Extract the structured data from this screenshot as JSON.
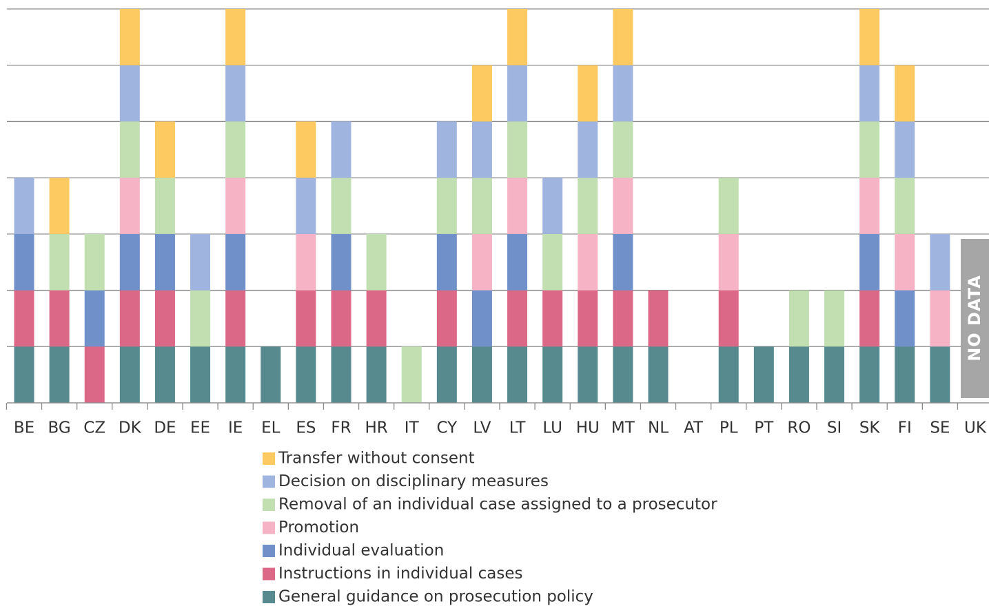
{
  "chart_data": {
    "type": "stacked_bar",
    "categories": [
      "BE",
      "BG",
      "CZ",
      "DK",
      "DE",
      "EE",
      "IE",
      "EL",
      "ES",
      "FR",
      "HR",
      "IT",
      "CY",
      "LV",
      "LT",
      "LU",
      "HU",
      "MT",
      "NL",
      "AT",
      "PL",
      "PT",
      "RO",
      "SI",
      "SK",
      "FI",
      "SE",
      "UK"
    ],
    "series": [
      {
        "name": "General guidance on prosecution policy",
        "color": "#568a8f",
        "values": [
          1,
          1,
          0,
          1,
          1,
          1,
          1,
          1,
          1,
          1,
          1,
          0,
          1,
          1,
          1,
          1,
          1,
          1,
          1,
          0,
          1,
          1,
          1,
          1,
          1,
          1,
          1,
          null
        ]
      },
      {
        "name": "Instructions in individual cases",
        "color": "#dc6888",
        "values": [
          1,
          1,
          1,
          1,
          1,
          0,
          1,
          0,
          1,
          1,
          1,
          0,
          1,
          0,
          1,
          1,
          1,
          1,
          1,
          0,
          1,
          0,
          0,
          0,
          1,
          0,
          0,
          null
        ]
      },
      {
        "name": "Individual evaluation",
        "color": "#7090c9",
        "values": [
          1,
          0,
          1,
          1,
          1,
          0,
          1,
          0,
          0,
          1,
          0,
          0,
          1,
          1,
          1,
          0,
          0,
          1,
          0,
          0,
          0,
          0,
          0,
          0,
          1,
          1,
          0,
          null
        ]
      },
      {
        "name": "Promotion",
        "color": "#f5b3c5",
        "values": [
          0,
          0,
          0,
          1,
          0,
          0,
          1,
          0,
          1,
          0,
          0,
          0,
          0,
          1,
          1,
          0,
          1,
          1,
          0,
          0,
          1,
          0,
          0,
          0,
          1,
          1,
          1,
          null
        ]
      },
      {
        "name": "Removal of an individual case assigned to a prosecutor",
        "color": "#c2dfb2",
        "values": [
          0,
          1,
          1,
          1,
          1,
          1,
          1,
          0,
          0,
          1,
          1,
          1,
          1,
          1,
          1,
          1,
          1,
          1,
          0,
          0,
          1,
          0,
          1,
          1,
          1,
          1,
          0,
          null
        ]
      },
      {
        "name": "Decision on disciplinary measures",
        "color": "#a0b4e0",
        "values": [
          1,
          0,
          0,
          1,
          0,
          1,
          1,
          0,
          1,
          1,
          0,
          0,
          1,
          1,
          1,
          1,
          1,
          1,
          0,
          0,
          0,
          0,
          0,
          0,
          1,
          1,
          1,
          null
        ]
      },
      {
        "name": "Transfer without consent",
        "color": "#fdc961",
        "values": [
          0,
          1,
          0,
          1,
          1,
          0,
          1,
          0,
          1,
          0,
          0,
          0,
          0,
          1,
          1,
          0,
          1,
          1,
          0,
          0,
          0,
          0,
          0,
          0,
          1,
          1,
          0,
          null
        ]
      }
    ],
    "ylim": [
      0,
      7
    ],
    "yticks": [
      0,
      1,
      2,
      3,
      4,
      5,
      6,
      7
    ],
    "grid": true,
    "annotations": [
      "NO DATA"
    ]
  }
}
